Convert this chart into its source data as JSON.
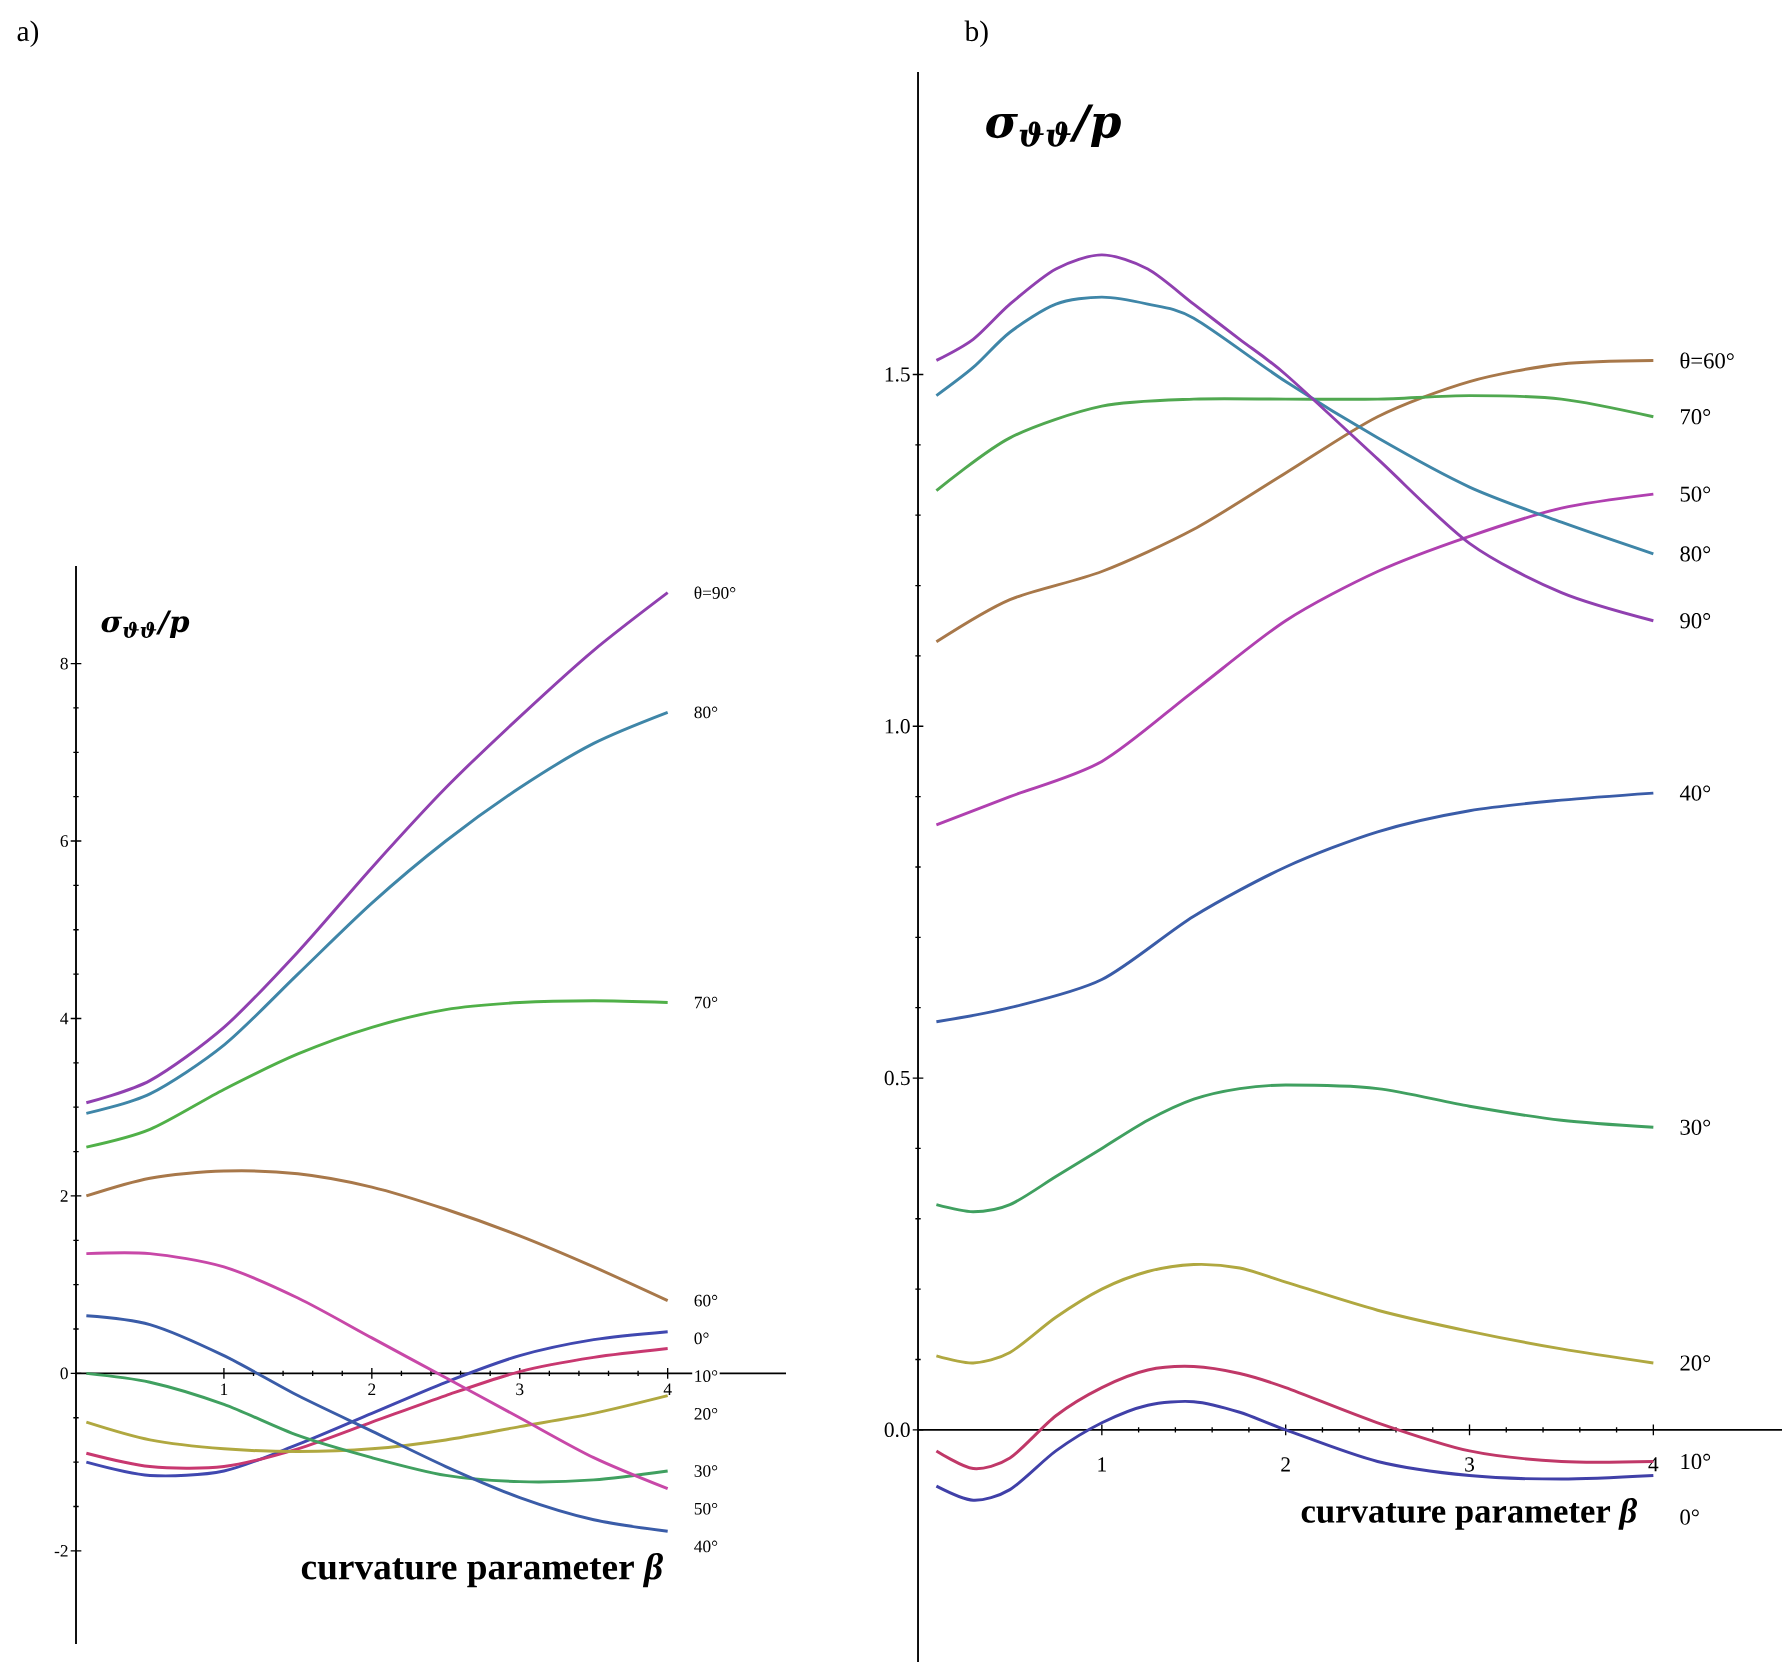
{
  "chart_data": [
    {
      "type": "line",
      "title": "a)",
      "xlabel": "curvature parameter *β*",
      "ylabel": "σ$_{ϑϑ}$/p",
      "xlim": [
        0,
        4.8
      ],
      "ylim": [
        -3.05,
        9.1
      ],
      "xticks": [
        1,
        2,
        3,
        4
      ],
      "yticks": [
        -2,
        0,
        2,
        4,
        6,
        8
      ],
      "series": [
        {
          "name": "θ=90°",
          "color": "#9040b0",
          "x": [
            0.07,
            0.5,
            1,
            1.5,
            2,
            2.5,
            3,
            3.5,
            4
          ],
          "values": [
            3.05,
            3.3,
            3.9,
            4.75,
            5.7,
            6.6,
            7.4,
            8.15,
            8.8
          ]
        },
        {
          "name": "80°",
          "color": "#3f86a8",
          "x": [
            0.07,
            0.5,
            1,
            1.5,
            2,
            2.5,
            3,
            3.5,
            4
          ],
          "values": [
            2.93,
            3.15,
            3.7,
            4.5,
            5.3,
            6.0,
            6.6,
            7.1,
            7.45
          ]
        },
        {
          "name": "70°",
          "color": "#50b048",
          "x": [
            0.07,
            0.5,
            1,
            1.5,
            2,
            2.5,
            3,
            3.5,
            4
          ],
          "values": [
            2.55,
            2.75,
            3.2,
            3.6,
            3.9,
            4.1,
            4.18,
            4.2,
            4.18
          ]
        },
        {
          "name": "60°",
          "color": "#a8784a",
          "x": [
            0.07,
            0.5,
            1,
            1.5,
            2,
            2.5,
            3,
            3.5,
            4
          ],
          "values": [
            2.0,
            2.2,
            2.28,
            2.25,
            2.1,
            1.85,
            1.55,
            1.2,
            0.82
          ]
        },
        {
          "name": "0°",
          "color": "#4048b0",
          "x": [
            0.07,
            0.5,
            1,
            1.5,
            2,
            2.5,
            3,
            3.5,
            4
          ],
          "values": [
            -1.0,
            -1.15,
            -1.1,
            -0.8,
            -0.45,
            -0.1,
            0.2,
            0.38,
            0.47
          ]
        },
        {
          "name": "10°",
          "color": "#c83870",
          "x": [
            0.07,
            0.5,
            1,
            1.5,
            2,
            2.5,
            3,
            3.5,
            4
          ],
          "values": [
            -0.9,
            -1.05,
            -1.05,
            -0.85,
            -0.55,
            -0.25,
            0.02,
            0.18,
            0.28
          ]
        },
        {
          "name": "20°",
          "color": "#b0a840",
          "x": [
            0.07,
            0.5,
            1,
            1.5,
            2,
            2.5,
            3,
            3.5,
            4
          ],
          "values": [
            -0.55,
            -0.75,
            -0.85,
            -0.88,
            -0.85,
            -0.75,
            -0.6,
            -0.45,
            -0.25
          ]
        },
        {
          "name": "30°",
          "color": "#40a060",
          "x": [
            0.07,
            0.5,
            1,
            1.5,
            2,
            2.5,
            3,
            3.5,
            4
          ],
          "values": [
            0.0,
            -0.1,
            -0.35,
            -0.7,
            -0.95,
            -1.15,
            -1.22,
            -1.2,
            -1.1
          ]
        },
        {
          "name": "50°",
          "color": "#c848a8",
          "x": [
            0.07,
            0.5,
            1,
            1.5,
            2,
            2.5,
            3,
            3.5,
            4
          ],
          "values": [
            1.35,
            1.35,
            1.2,
            0.85,
            0.4,
            -0.05,
            -0.5,
            -0.95,
            -1.3
          ]
        },
        {
          "name": "40°",
          "color": "#3a5ca8",
          "x": [
            0.07,
            0.5,
            1,
            1.5,
            2,
            2.5,
            3,
            3.5,
            4
          ],
          "values": [
            0.65,
            0.55,
            0.2,
            -0.25,
            -0.65,
            -1.05,
            -1.4,
            -1.65,
            -1.78
          ]
        }
      ]
    },
    {
      "type": "line",
      "title": "b)",
      "xlabel": "curvature parameter *β*",
      "ylabel": "σ$_{ϑϑ}$/p",
      "xlim": [
        0,
        4.7
      ],
      "ylim": [
        -0.33,
        1.93
      ],
      "xticks": [
        1,
        2,
        3,
        4
      ],
      "yticks": [
        {
          "value": 0,
          "label": "0.0"
        },
        0.5,
        {
          "value": 1,
          "label": "1.0"
        },
        1.5
      ],
      "series": [
        {
          "name": "θ=60°",
          "color": "#a8784a",
          "x": [
            0.1,
            0.5,
            1,
            1.5,
            2,
            2.5,
            3,
            3.5,
            4
          ],
          "values": [
            1.12,
            1.18,
            1.22,
            1.28,
            1.36,
            1.44,
            1.49,
            1.515,
            1.52
          ]
        },
        {
          "name": "70°",
          "color": "#50a850",
          "x": [
            0.1,
            0.5,
            1,
            1.5,
            2,
            2.5,
            3,
            3.5,
            4
          ],
          "values": [
            1.335,
            1.41,
            1.455,
            1.465,
            1.465,
            1.465,
            1.47,
            1.465,
            1.44
          ]
        },
        {
          "name": "50°",
          "color": "#b040b0",
          "x": [
            0.1,
            0.5,
            1,
            1.5,
            2,
            2.5,
            3,
            3.5,
            4
          ],
          "values": [
            0.86,
            0.9,
            0.95,
            1.05,
            1.15,
            1.22,
            1.27,
            1.31,
            1.33
          ]
        },
        {
          "name": "80°",
          "color": "#3f86a8",
          "x": [
            0.1,
            0.3,
            0.5,
            0.75,
            1,
            1.25,
            1.5,
            2,
            2.5,
            3,
            3.5,
            4
          ],
          "values": [
            1.47,
            1.51,
            1.56,
            1.6,
            1.61,
            1.6,
            1.58,
            1.49,
            1.41,
            1.34,
            1.29,
            1.245
          ]
        },
        {
          "name": "90°",
          "color": "#9040b0",
          "x": [
            0.1,
            0.3,
            0.5,
            0.75,
            1,
            1.25,
            1.5,
            1.75,
            2,
            2.5,
            3,
            3.5,
            4
          ],
          "values": [
            1.52,
            1.55,
            1.6,
            1.65,
            1.67,
            1.65,
            1.6,
            1.55,
            1.5,
            1.38,
            1.26,
            1.19,
            1.15
          ]
        },
        {
          "name": "40°",
          "color": "#3a5ca8",
          "x": [
            0.1,
            0.5,
            1,
            1.5,
            2,
            2.5,
            3,
            3.5,
            4
          ],
          "values": [
            0.58,
            0.6,
            0.64,
            0.73,
            0.8,
            0.85,
            0.88,
            0.895,
            0.905
          ]
        },
        {
          "name": "30°",
          "color": "#40a060",
          "x": [
            0.1,
            0.3,
            0.5,
            0.75,
            1,
            1.25,
            1.5,
            1.75,
            2,
            2.5,
            3,
            3.5,
            4
          ],
          "values": [
            0.32,
            0.31,
            0.32,
            0.36,
            0.4,
            0.44,
            0.47,
            0.485,
            0.49,
            0.485,
            0.46,
            0.44,
            0.43
          ]
        },
        {
          "name": "20°",
          "color": "#b0a840",
          "x": [
            0.1,
            0.3,
            0.5,
            0.75,
            1,
            1.25,
            1.5,
            1.75,
            2,
            2.5,
            3,
            3.5,
            4
          ],
          "values": [
            0.105,
            0.095,
            0.11,
            0.16,
            0.2,
            0.225,
            0.235,
            0.23,
            0.21,
            0.17,
            0.14,
            0.115,
            0.095
          ]
        },
        {
          "name": "10°",
          "color": "#c03868",
          "x": [
            0.1,
            0.3,
            0.5,
            0.75,
            1,
            1.25,
            1.5,
            1.75,
            2,
            2.5,
            3,
            3.5,
            4
          ],
          "values": [
            -0.03,
            -0.055,
            -0.04,
            0.02,
            0.06,
            0.085,
            0.09,
            0.08,
            0.06,
            0.01,
            -0.03,
            -0.045,
            -0.045
          ]
        },
        {
          "name": "0°",
          "color": "#4040a8",
          "x": [
            0.1,
            0.3,
            0.5,
            0.75,
            1,
            1.25,
            1.5,
            1.75,
            2,
            2.5,
            3,
            3.5,
            4
          ],
          "values": [
            -0.08,
            -0.1,
            -0.085,
            -0.03,
            0.01,
            0.035,
            0.04,
            0.025,
            0.0,
            -0.045,
            -0.065,
            -0.07,
            -0.065
          ]
        }
      ]
    }
  ]
}
